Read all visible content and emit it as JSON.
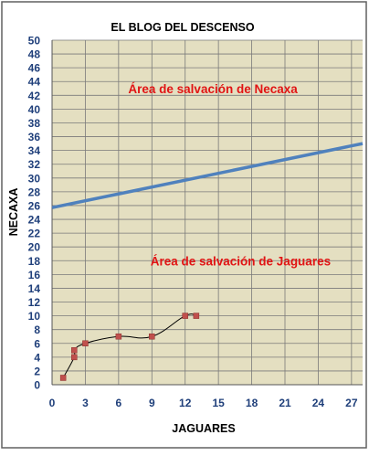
{
  "chart_data": {
    "type": "line",
    "title": "EL BLOG DEL DESCENSO",
    "xlabel": "JAGUARES",
    "ylabel": "NECAXA",
    "xlim": [
      0,
      28
    ],
    "ylim": [
      0,
      50
    ],
    "x_ticks": [
      0,
      3,
      6,
      9,
      12,
      15,
      18,
      21,
      24,
      27
    ],
    "y_ticks": [
      0,
      2,
      4,
      6,
      8,
      10,
      12,
      14,
      16,
      18,
      20,
      22,
      24,
      26,
      28,
      30,
      32,
      34,
      36,
      38,
      40,
      42,
      44,
      46,
      48,
      50
    ],
    "grid": true,
    "colors": {
      "background": "#ffffff",
      "plot_area": "#e4dfc1",
      "frame_border": "#606060",
      "grid": "#7a7a7a",
      "title": "#000000",
      "axis_label": "#000000",
      "tick_label": "#1f3f7a",
      "annotation": "#e11414",
      "boundary_line": "#4f81bd",
      "record_line": "#000000",
      "record_marker": "#c0504d"
    },
    "series": [
      {
        "kind": "trend",
        "x": [
          0,
          28
        ],
        "y": [
          25.7,
          35.0
        ]
      },
      {
        "kind": "points",
        "x": [
          1,
          2,
          2,
          3,
          6,
          9,
          12,
          13
        ],
        "y": [
          1,
          4,
          5,
          6,
          7,
          7,
          10,
          10
        ]
      }
    ],
    "annotations": [
      {
        "text": "Área de salvación de Necaxa",
        "x": 14.5,
        "y": 43
      },
      {
        "text": "Área de salvación de Jaguares",
        "x": 17,
        "y": 18
      }
    ]
  }
}
